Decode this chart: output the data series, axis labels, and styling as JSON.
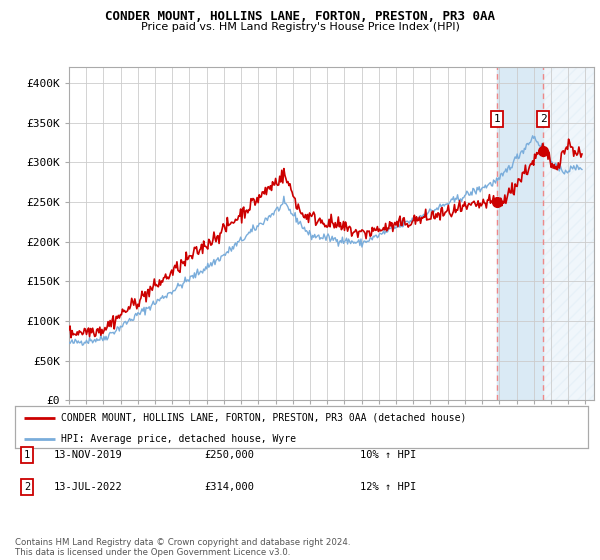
{
  "title": "CONDER MOUNT, HOLLINS LANE, FORTON, PRESTON, PR3 0AA",
  "subtitle": "Price paid vs. HM Land Registry's House Price Index (HPI)",
  "ylim": [
    0,
    420000
  ],
  "yticks": [
    0,
    50000,
    100000,
    150000,
    200000,
    250000,
    300000,
    350000,
    400000
  ],
  "ytick_labels": [
    "£0",
    "£50K",
    "£100K",
    "£150K",
    "£200K",
    "£250K",
    "£300K",
    "£350K",
    "£400K"
  ],
  "background_color": "#ffffff",
  "plot_bg_color": "#ffffff",
  "grid_color": "#cccccc",
  "legend_entry1": "CONDER MOUNT, HOLLINS LANE, FORTON, PRESTON, PR3 0AA (detached house)",
  "legend_entry2": "HPI: Average price, detached house, Wyre",
  "note1_num": "1",
  "note1_date": "13-NOV-2019",
  "note1_price": "£250,000",
  "note1_hpi": "10% ↑ HPI",
  "note2_num": "2",
  "note2_date": "13-JUL-2022",
  "note2_price": "£314,000",
  "note2_hpi": "12% ↑ HPI",
  "footer": "Contains HM Land Registry data © Crown copyright and database right 2024.\nThis data is licensed under the Open Government Licence v3.0.",
  "red_color": "#cc0000",
  "blue_color": "#7aaddb",
  "highlight_shading": "#daeaf5",
  "sale1_x": 2019.87,
  "sale2_x": 2022.54,
  "sale1_y": 250000,
  "sale2_y": 314000,
  "dashed_line_color": "#ee8888",
  "shade_start": 2019.87,
  "shade_end": 2022.54,
  "xlim_start": 1995,
  "xlim_end": 2025.5
}
